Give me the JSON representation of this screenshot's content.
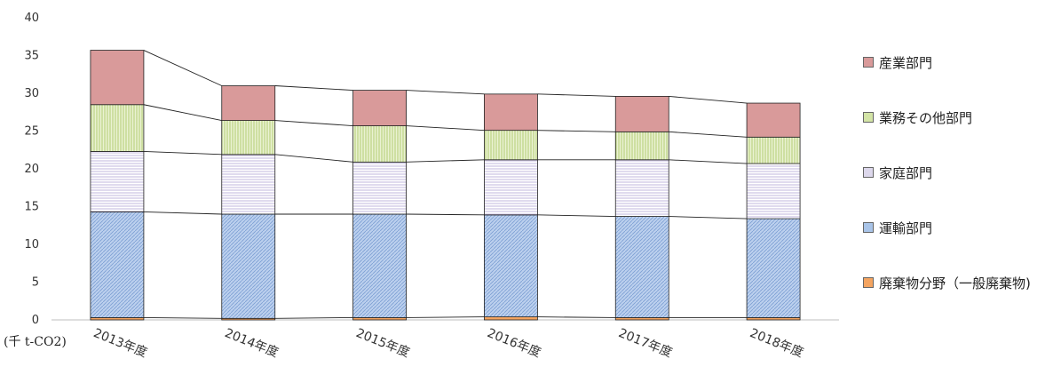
{
  "chart_data": {
    "type": "bar",
    "stacked": true,
    "categories": [
      "2013年度",
      "2014年度",
      "2015年度",
      "2016年度",
      "2017年度",
      "2018年度"
    ],
    "series": [
      {
        "name": "廃棄物分野（一般廃棄物)",
        "color": "#f4a460",
        "values": [
          0.3,
          0.2,
          0.3,
          0.4,
          0.3,
          0.3
        ]
      },
      {
        "name": "運輸部門",
        "color": "#a9c4e8",
        "values": [
          14.0,
          13.8,
          13.7,
          13.5,
          13.4,
          13.1
        ]
      },
      {
        "name": "家庭部門",
        "color": "#ddd8ec",
        "values": [
          8.0,
          7.9,
          6.9,
          7.3,
          7.5,
          7.3
        ]
      },
      {
        "name": "業務その他部門",
        "color": "#d3e4a6",
        "values": [
          6.2,
          4.5,
          4.8,
          3.9,
          3.7,
          3.5
        ]
      },
      {
        "name": "産業部門",
        "color": "#d99a9a",
        "values": [
          7.2,
          4.6,
          4.7,
          4.8,
          4.7,
          4.5
        ]
      }
    ],
    "ylim": [
      0,
      40
    ],
    "yticks": [
      0,
      5,
      10,
      15,
      20,
      25,
      30,
      35,
      40
    ],
    "ylabel": "",
    "xlabel": "",
    "unit_label": "(千 t-CO2)",
    "legend_position": "right",
    "grid": false
  },
  "legend": {
    "items": [
      {
        "label": "産業部門",
        "color": "#d99a9a"
      },
      {
        "label": "業務その他部門",
        "color": "#d3e4a6"
      },
      {
        "label": "家庭部門",
        "color": "#ddd8ec"
      },
      {
        "label": "運輸部門",
        "color": "#a9c4e8"
      },
      {
        "label": "廃棄物分野（一般廃棄物)",
        "color": "#f4a460"
      }
    ]
  }
}
